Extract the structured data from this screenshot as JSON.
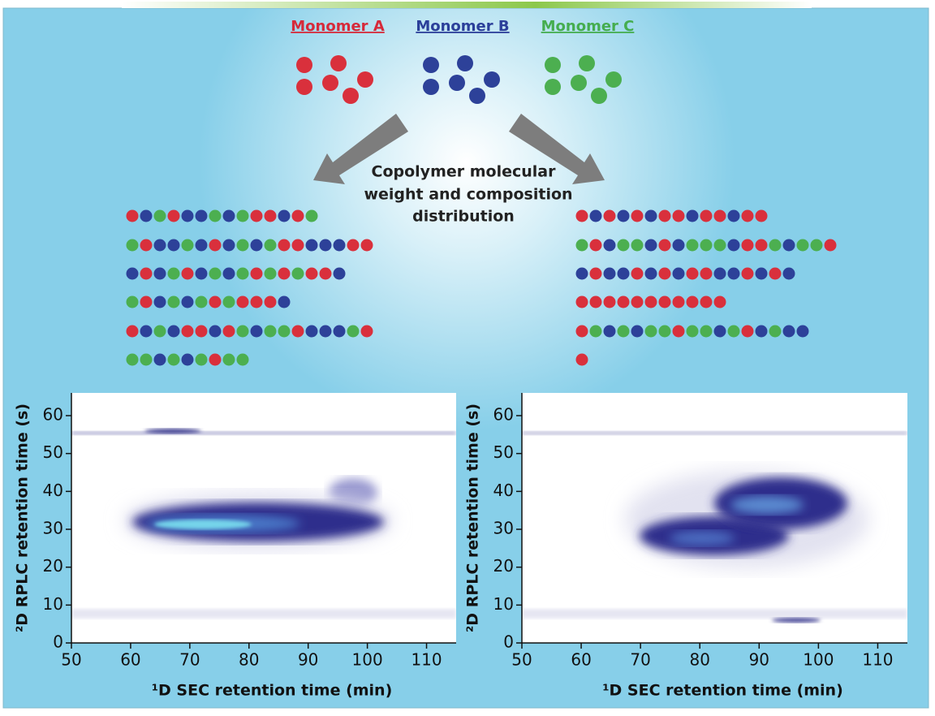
{
  "legend": {
    "items": [
      "Monomer A",
      "Monomer B",
      "Monomer C"
    ]
  },
  "caption": {
    "lines": [
      "Copolymer molecular",
      "weight and composition",
      "distribution"
    ]
  },
  "chart_data": [
    {
      "type": "heatmap",
      "xlabel": "¹D SEC retention time (min)",
      "ylabel": "²D RPLC retention time (s)",
      "xlim": [
        50,
        115
      ],
      "ylim": [
        0,
        66
      ],
      "xticks": [
        50,
        60,
        70,
        80,
        90,
        100,
        110
      ],
      "yticks": [
        0,
        10,
        20,
        30,
        40,
        50,
        60
      ]
    },
    {
      "type": "heatmap",
      "xlabel": "¹D SEC retention time (min)",
      "ylabel": "²D RPLC retention time (s)",
      "xlim": [
        50,
        115
      ],
      "ylim": [
        0,
        66
      ],
      "xticks": [
        50,
        60,
        70,
        80,
        90,
        100,
        110
      ],
      "yticks": [
        0,
        10,
        20,
        30,
        40,
        50,
        60
      ]
    }
  ]
}
